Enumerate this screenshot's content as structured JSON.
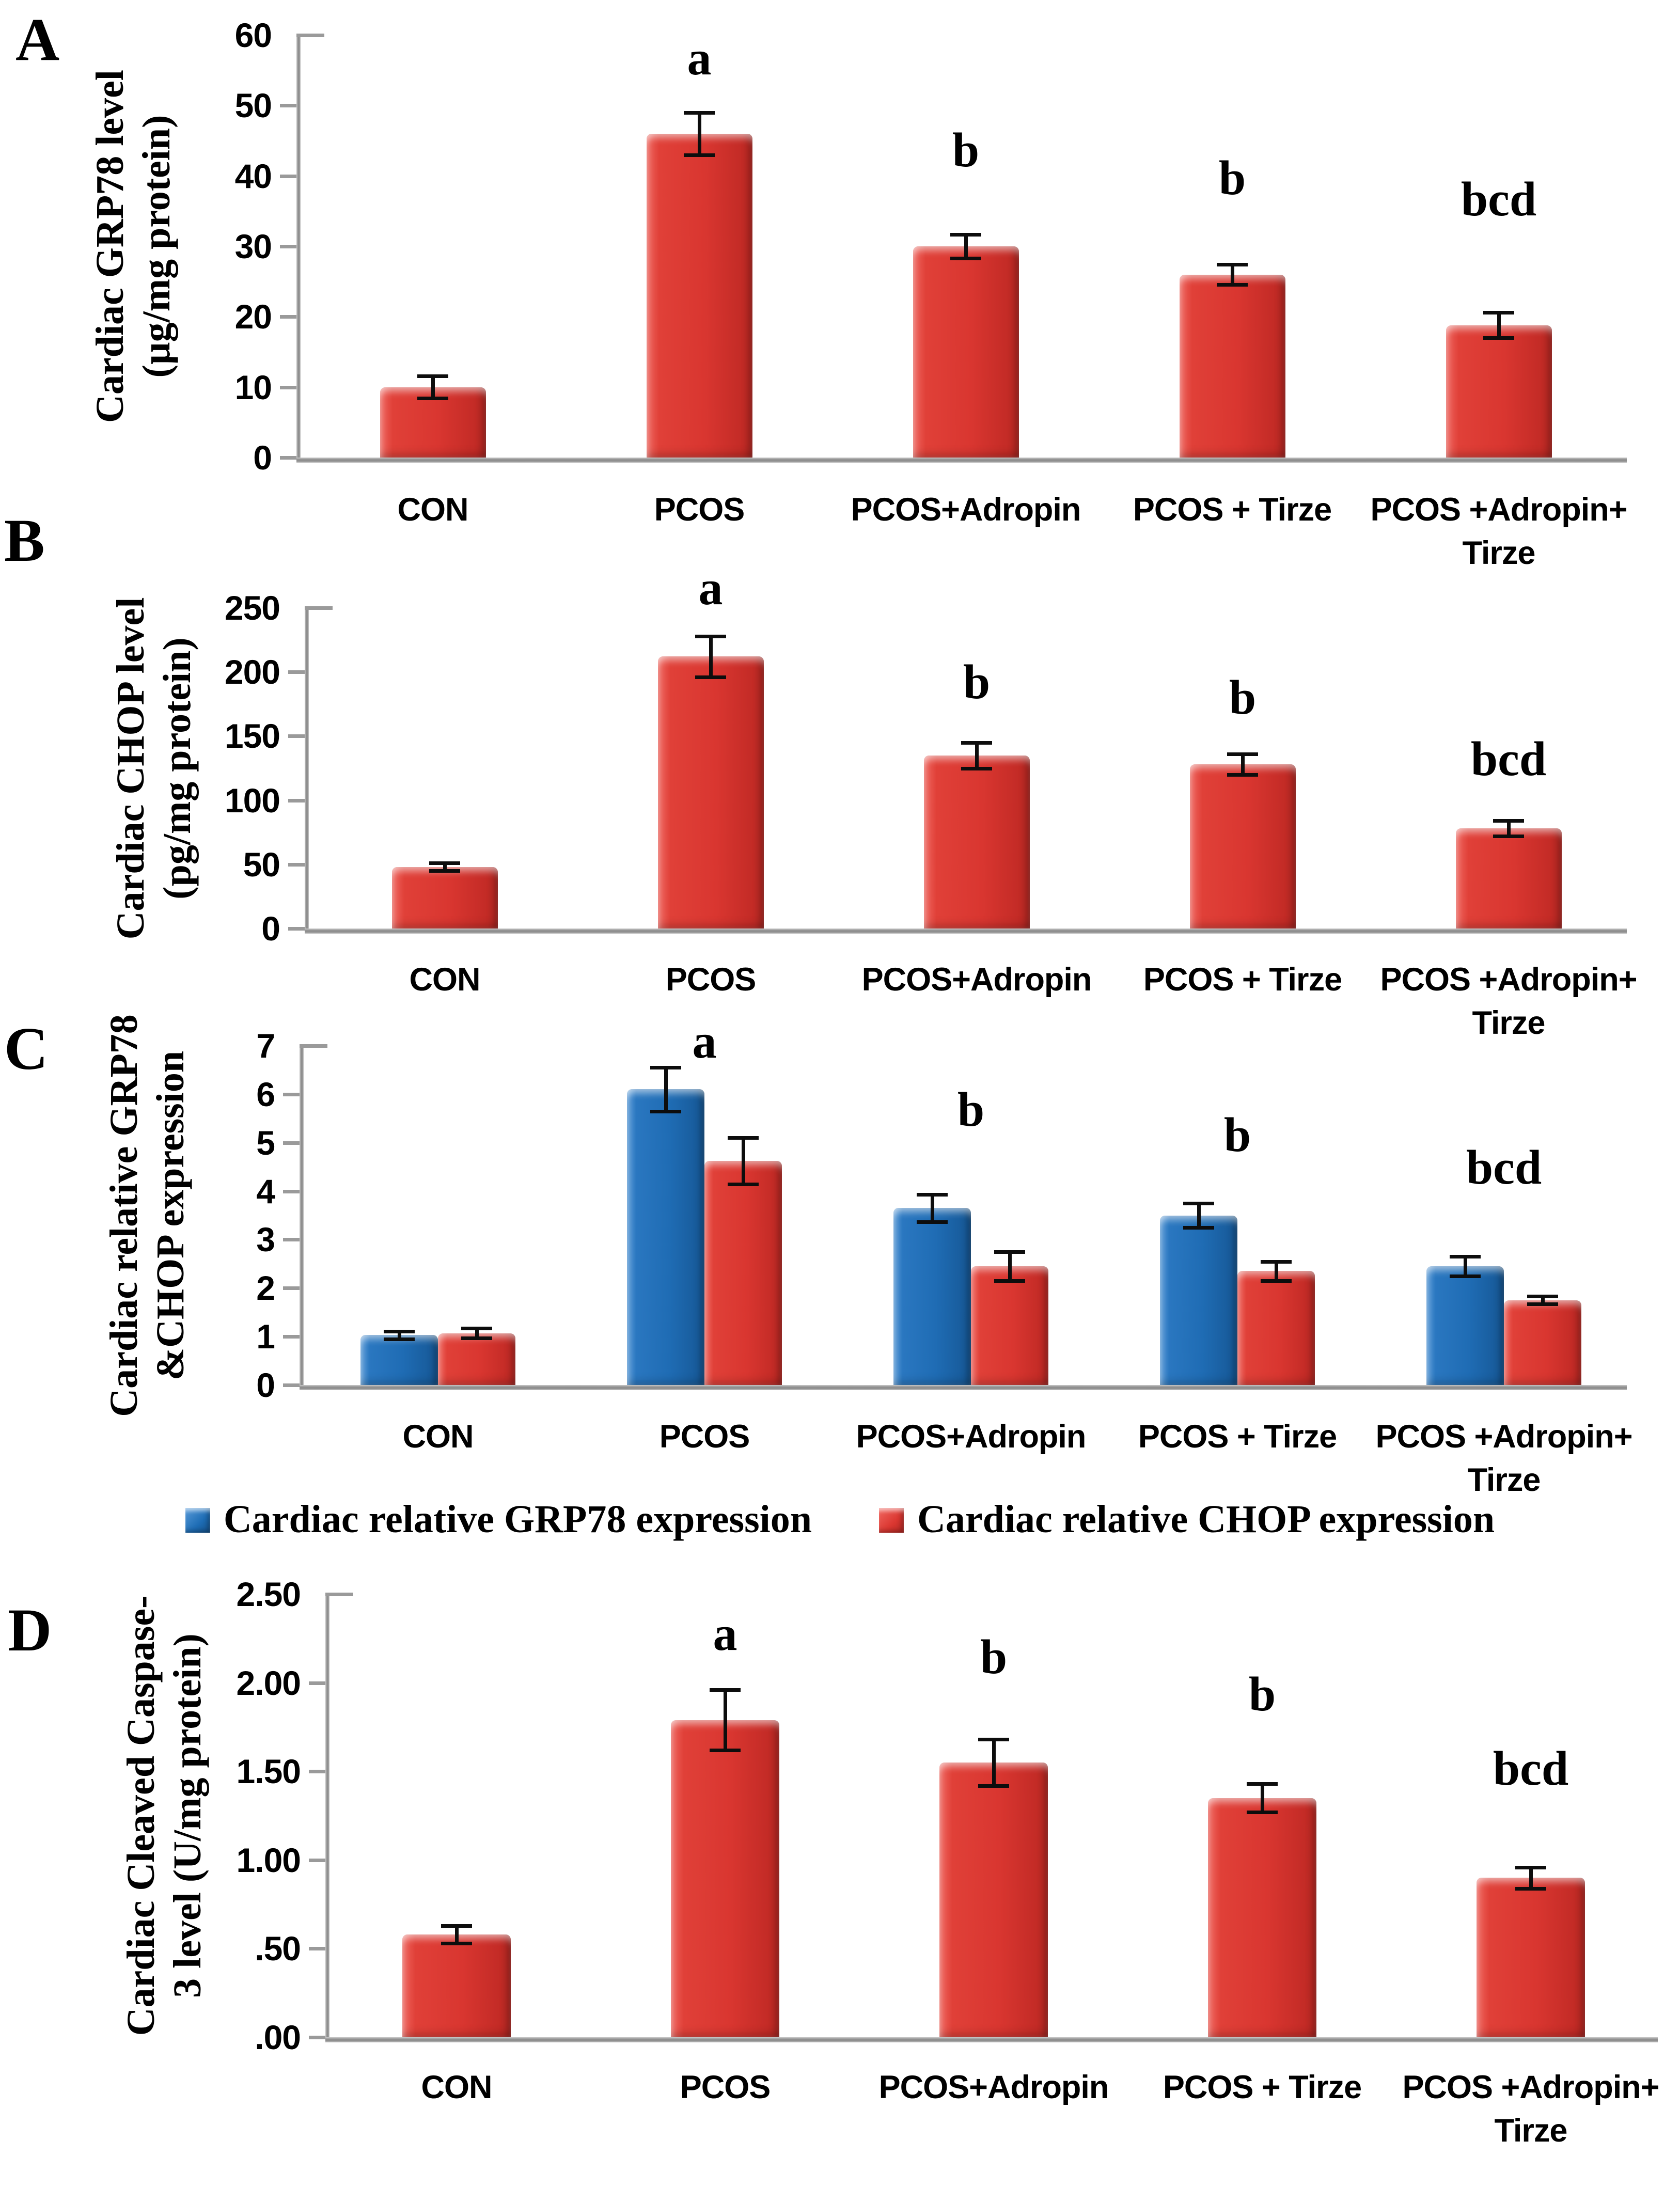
{
  "colors": {
    "bar_red": "#DB3731",
    "bar_blue": "#1E6DB5",
    "axis_gray": "#9A9A9A",
    "error_bar": "#0D0D0D"
  },
  "chart_data": [
    {
      "panel": "A",
      "type": "bar",
      "ylabel": "Cardiac GRP78 level (µg/mg protein)",
      "ylabel_lines": [
        "Cardiac GRP78 level",
        "(µg/mg protein)"
      ],
      "ylim": [
        0,
        60
      ],
      "yticks": [
        0,
        10,
        20,
        30,
        40,
        50,
        60
      ],
      "ytick_labels": [
        "0",
        "10",
        "20",
        "30",
        "40",
        "50",
        "60"
      ],
      "grid": false,
      "categories": [
        "CON",
        "PCOS",
        "PCOS+Adropin",
        "PCOS + Tirze",
        "PCOS +Adropin+\nTirze"
      ],
      "series": [
        {
          "name": "Cardiac GRP78 level",
          "color": "#DB3731",
          "values": [
            10,
            46,
            30,
            26,
            18.8
          ],
          "errors": [
            1.6,
            3,
            1.7,
            1.4,
            1.8
          ]
        }
      ],
      "sig_letters": [
        {
          "category_index": 1,
          "text": "a",
          "y": 53
        },
        {
          "category_index": 2,
          "text": "b",
          "y": 40
        },
        {
          "category_index": 3,
          "text": "b",
          "y": 36
        },
        {
          "category_index": 4,
          "text": "bcd",
          "y": 33
        }
      ]
    },
    {
      "panel": "B",
      "type": "bar",
      "ylabel": "Cardiac CHOP level (pg/mg protein)",
      "ylabel_lines": [
        "Cardiac CHOP level",
        "(pg/mg protein)"
      ],
      "ylim": [
        0,
        250
      ],
      "yticks": [
        0,
        50,
        100,
        150,
        200,
        250
      ],
      "ytick_labels": [
        "0",
        "50",
        "100",
        "150",
        "200",
        "250"
      ],
      "grid": false,
      "categories": [
        "CON",
        "PCOS",
        "PCOS+Adropin",
        "PCOS + Tirze",
        "PCOS +Adropin+\nTirze"
      ],
      "series": [
        {
          "name": "Cardiac CHOP level",
          "color": "#DB3731",
          "values": [
            48,
            212,
            135,
            128,
            78
          ],
          "errors": [
            3,
            16,
            10,
            8,
            6
          ]
        }
      ],
      "sig_letters": [
        {
          "category_index": 1,
          "text": "a",
          "y": 245
        },
        {
          "category_index": 2,
          "text": "b",
          "y": 172
        },
        {
          "category_index": 3,
          "text": "b",
          "y": 160
        },
        {
          "category_index": 4,
          "text": "bcd",
          "y": 112
        }
      ]
    },
    {
      "panel": "C",
      "type": "bar",
      "ylabel": "Cardiac relative GRP78 &CHOP expression",
      "ylabel_lines": [
        "Cardiac relative GRP78",
        "&CHOP expression"
      ],
      "ylim": [
        0,
        7
      ],
      "yticks": [
        0,
        1,
        2,
        3,
        4,
        5,
        6,
        7
      ],
      "ytick_labels": [
        "0",
        "1",
        "2",
        "3",
        "4",
        "5",
        "6",
        "7"
      ],
      "grid": false,
      "categories": [
        "CON",
        "PCOS",
        "PCOS+Adropin",
        "PCOS + Tirze",
        "PCOS +Adropin+\nTirze"
      ],
      "series": [
        {
          "name": "Cardiac relative GRP78 expression",
          "color": "#1E6DB5",
          "values": [
            1.03,
            6.1,
            3.65,
            3.5,
            2.45
          ],
          "errors": [
            0.08,
            0.45,
            0.28,
            0.25,
            0.2
          ]
        },
        {
          "name": "Cardiac relative CHOP expression",
          "color": "#DB3731",
          "values": [
            1.07,
            4.62,
            2.45,
            2.35,
            1.75
          ],
          "errors": [
            0.1,
            0.48,
            0.3,
            0.2,
            0.08
          ]
        }
      ],
      "sig_letters": [
        {
          "category_index": 1,
          "text": "a",
          "y": 6.55
        },
        {
          "category_index": 2,
          "text": "b",
          "y": 5.15
        },
        {
          "category_index": 3,
          "text": "b",
          "y": 4.62
        },
        {
          "category_index": 4,
          "text": "bcd",
          "y": 3.95
        }
      ],
      "legend": {
        "position": "bottom",
        "entries": [
          {
            "label": "Cardiac relative GRP78 expression",
            "color": "#1E6DB5"
          },
          {
            "label": "Cardiac relative CHOP expression",
            "color": "#DB3731"
          }
        ]
      }
    },
    {
      "panel": "D",
      "type": "bar",
      "ylabel": "Cardiac Cleaved Caspase-3 level (U/mg protein)",
      "ylabel_lines": [
        "Cardiac Cleaved Caspase-",
        "3 level (U/mg protein)"
      ],
      "ylim": [
        0,
        2.5
      ],
      "yticks": [
        0,
        0.5,
        1,
        1.5,
        2,
        2.5
      ],
      "ytick_labels": [
        ".00",
        ".50",
        "1.00",
        "1.50",
        "2.00",
        "2.50"
      ],
      "grid": false,
      "categories": [
        "CON",
        "PCOS",
        "PCOS+Adropin",
        "PCOS + Tirze",
        "PCOS +Adropin+\nTirze"
      ],
      "series": [
        {
          "name": "Cardiac Cleaved Caspase-3 level",
          "color": "#DB3731",
          "values": [
            0.58,
            1.79,
            1.55,
            1.35,
            0.9
          ],
          "errors": [
            0.05,
            0.17,
            0.13,
            0.08,
            0.06
          ]
        }
      ],
      "sig_letters": [
        {
          "category_index": 1,
          "text": "a",
          "y": 2.13
        },
        {
          "category_index": 2,
          "text": "b",
          "y": 2.0
        },
        {
          "category_index": 3,
          "text": "b",
          "y": 1.79
        },
        {
          "category_index": 4,
          "text": "bcd",
          "y": 1.37
        }
      ]
    }
  ]
}
